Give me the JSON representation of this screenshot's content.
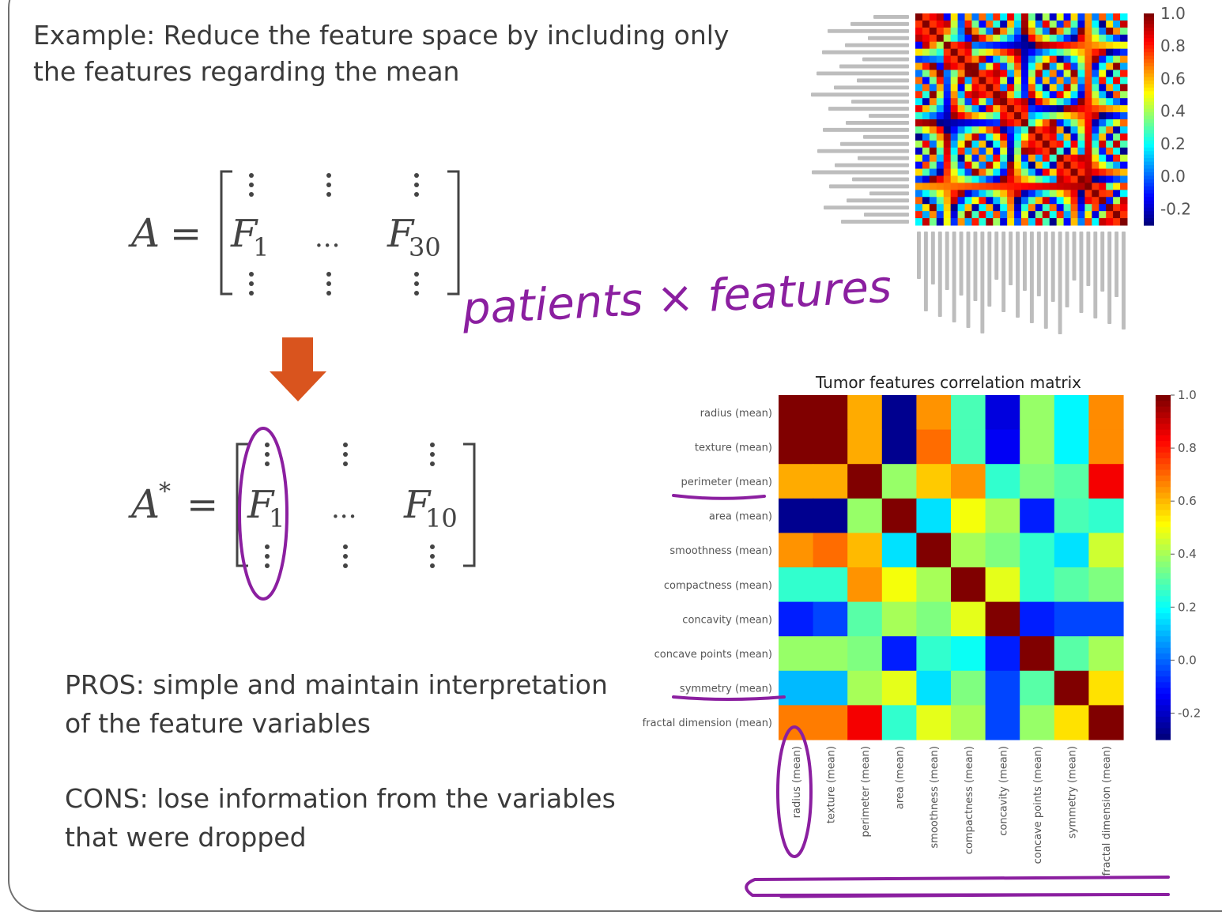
{
  "slide": {
    "title_line1": "Example: Reduce the feature space by including only",
    "title_line2": "the features regarding the mean",
    "pros_line1": "PROS: simple and maintain interpretation",
    "pros_line2": "of the feature variables",
    "cons_line1": "CONS: lose information from the variables",
    "cons_line2": "that were dropped",
    "arrow_color": "#d9541e",
    "ink_color": "#8b1fa0"
  },
  "matrix_a": {
    "lhs": "A",
    "first_col": "F",
    "first_sub": "1",
    "mid": "...",
    "last_col": "F",
    "last_sub": "30"
  },
  "matrix_a_star": {
    "lhs": "A",
    "star": "*",
    "first_col": "F",
    "first_sub": "1",
    "mid": "...",
    "last_col": "F",
    "last_sub": "10"
  },
  "handwriting": {
    "annotation": "patients × features"
  },
  "chart_data": [
    {
      "type": "heatmap",
      "title": "",
      "rows": 30,
      "cols": 30,
      "colorbar_ticks": [
        "1.0",
        "0.8",
        "0.6",
        "0.4",
        "0.2",
        "0.0",
        "-0.2"
      ],
      "colormap": "jet"
    },
    {
      "type": "heatmap",
      "title": "Tumor features correlation matrix",
      "labels": [
        "radius (mean)",
        "texture (mean)",
        "perimeter (mean)",
        "area (mean)",
        "smoothness (mean)",
        "compactness (mean)",
        "concavity (mean)",
        "concave points (mean)",
        "symmetry (mean)",
        "fractal dimension (mean)"
      ],
      "values": [
        [
          1.0,
          1.0,
          0.62,
          -0.28,
          0.65,
          0.28,
          -0.18,
          0.38,
          0.18,
          0.66
        ],
        [
          1.0,
          1.0,
          0.62,
          -0.28,
          0.7,
          0.28,
          -0.15,
          0.38,
          0.18,
          0.66
        ],
        [
          0.62,
          0.62,
          1.0,
          0.38,
          0.58,
          0.65,
          0.25,
          0.35,
          0.3,
          0.85
        ],
        [
          -0.28,
          -0.28,
          0.38,
          1.0,
          0.15,
          0.5,
          0.4,
          -0.1,
          0.28,
          0.25
        ],
        [
          0.65,
          0.7,
          0.6,
          0.15,
          1.0,
          0.4,
          0.35,
          0.25,
          0.15,
          0.45
        ],
        [
          0.25,
          0.25,
          0.65,
          0.5,
          0.4,
          1.0,
          0.48,
          0.25,
          0.3,
          0.35
        ],
        [
          -0.1,
          -0.05,
          0.3,
          0.4,
          0.35,
          0.48,
          1.0,
          -0.1,
          -0.05,
          -0.05
        ],
        [
          0.38,
          0.38,
          0.35,
          -0.1,
          0.25,
          0.2,
          -0.1,
          1.0,
          0.3,
          0.4
        ],
        [
          0.1,
          0.1,
          0.4,
          0.48,
          0.15,
          0.35,
          -0.05,
          0.3,
          1.0,
          0.55
        ],
        [
          0.68,
          0.68,
          0.85,
          0.25,
          0.48,
          0.4,
          -0.05,
          0.38,
          0.55,
          1.0
        ]
      ],
      "vmin": -0.3,
      "vmax": 1.0,
      "colorbar_ticks": [
        "1.0",
        "0.8",
        "0.6",
        "0.4",
        "0.2",
        "0.0",
        "-0.2"
      ],
      "colormap": "jet",
      "grid": false
    }
  ]
}
